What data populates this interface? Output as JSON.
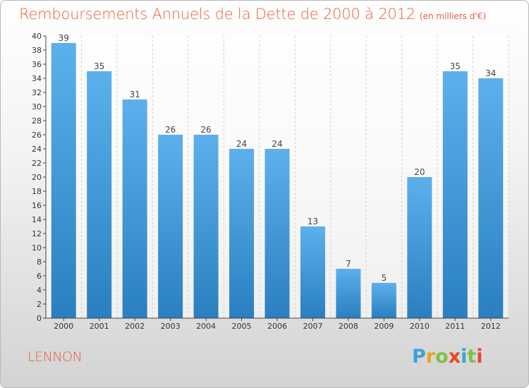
{
  "title": {
    "main": "Remboursements Annuels de la Dette de 2000 à 2012",
    "unit": "(en milliers d'€)"
  },
  "commune": "LENNON",
  "brand": {
    "text": "Proxiti",
    "letters": [
      "P",
      "r",
      "o",
      "x",
      "i",
      "t",
      "i"
    ],
    "colors": [
      "#3aa3d8",
      "#f0a020",
      "#7cc242",
      "#e8462a",
      "#3aa3d8",
      "#7cc242",
      "#e8462a"
    ]
  },
  "colors": {
    "title": "#e8603a",
    "bar_light": "#5cb0eb",
    "bar_dark": "#2a7fc0",
    "axis": "#444444",
    "grid": "#d0d0d0"
  },
  "chart_data": {
    "type": "bar",
    "categories": [
      "2000",
      "2001",
      "2002",
      "2003",
      "2004",
      "2005",
      "2006",
      "2007",
      "2008",
      "2009",
      "2010",
      "2011",
      "2012"
    ],
    "values": [
      39,
      35,
      31,
      26,
      26,
      24,
      24,
      13,
      7,
      5,
      20,
      35,
      34
    ],
    "title": "Remboursements Annuels de la Dette de 2000 à 2012",
    "ylabel": "(en milliers d'€)",
    "ylim": [
      0,
      40
    ],
    "yticks": [
      0,
      2,
      4,
      6,
      8,
      10,
      12,
      14,
      16,
      18,
      20,
      22,
      24,
      26,
      28,
      30,
      32,
      34,
      36,
      38,
      40
    ],
    "data_labels": true,
    "grid": "vertical"
  }
}
